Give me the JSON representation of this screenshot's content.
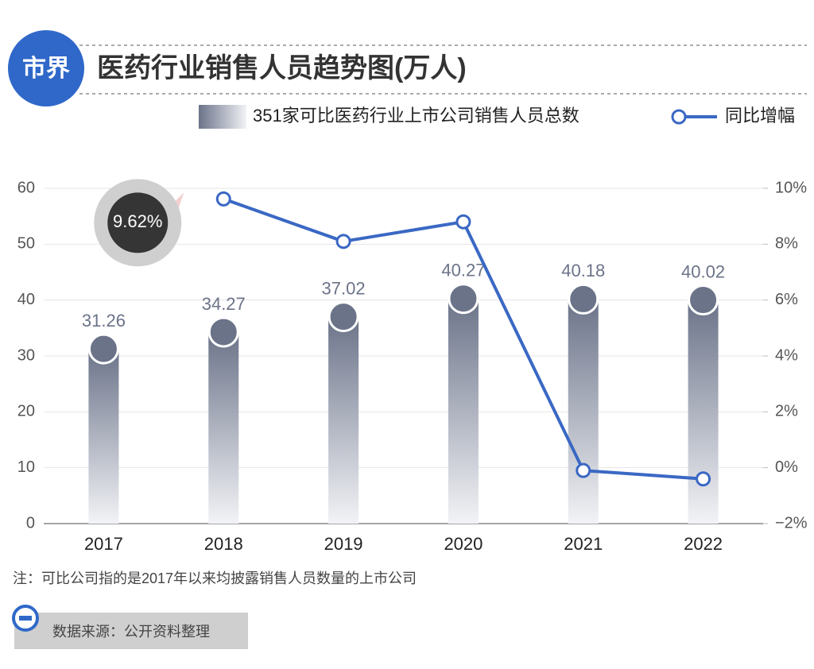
{
  "chart_data": {
    "type": "bar",
    "title": "医药行业销售人员趋势图(万人)",
    "logo": "市界",
    "categories": [
      "2017",
      "2018",
      "2019",
      "2020",
      "2021",
      "2022"
    ],
    "series": [
      {
        "name": "351家可比医药行业上市公司销售人员总数",
        "type": "bar",
        "color": "#6b7389",
        "values": [
          31.26,
          34.27,
          37.02,
          40.27,
          40.18,
          40.02
        ]
      },
      {
        "name": "同比增幅",
        "type": "line",
        "axis": "y2",
        "color": "#3a68c4",
        "values": [
          null,
          9.62,
          8.1,
          8.8,
          -0.1,
          -0.4
        ],
        "value_labels": [
          null,
          "9.62%",
          null,
          null,
          null,
          null
        ]
      }
    ],
    "ylim": [
      0,
      60
    ],
    "yticks": [
      0,
      10,
      20,
      30,
      40,
      50,
      60
    ],
    "y2lim": [
      -2,
      10
    ],
    "y2ticks": [
      {
        "value": -2,
        "label": "−2%"
      },
      {
        "value": 0,
        "label": "0%"
      },
      {
        "value": 2,
        "label": "2%"
      },
      {
        "value": 4,
        "label": "4%"
      },
      {
        "value": 6,
        "label": "6%"
      },
      {
        "value": 8,
        "label": "8%"
      },
      {
        "value": 10,
        "label": "10%"
      }
    ],
    "grid": true,
    "note": "注：可比公司指的是2017年以来均披露销售人员数量的上市公司",
    "source": "数据来源：公开资料整理"
  }
}
